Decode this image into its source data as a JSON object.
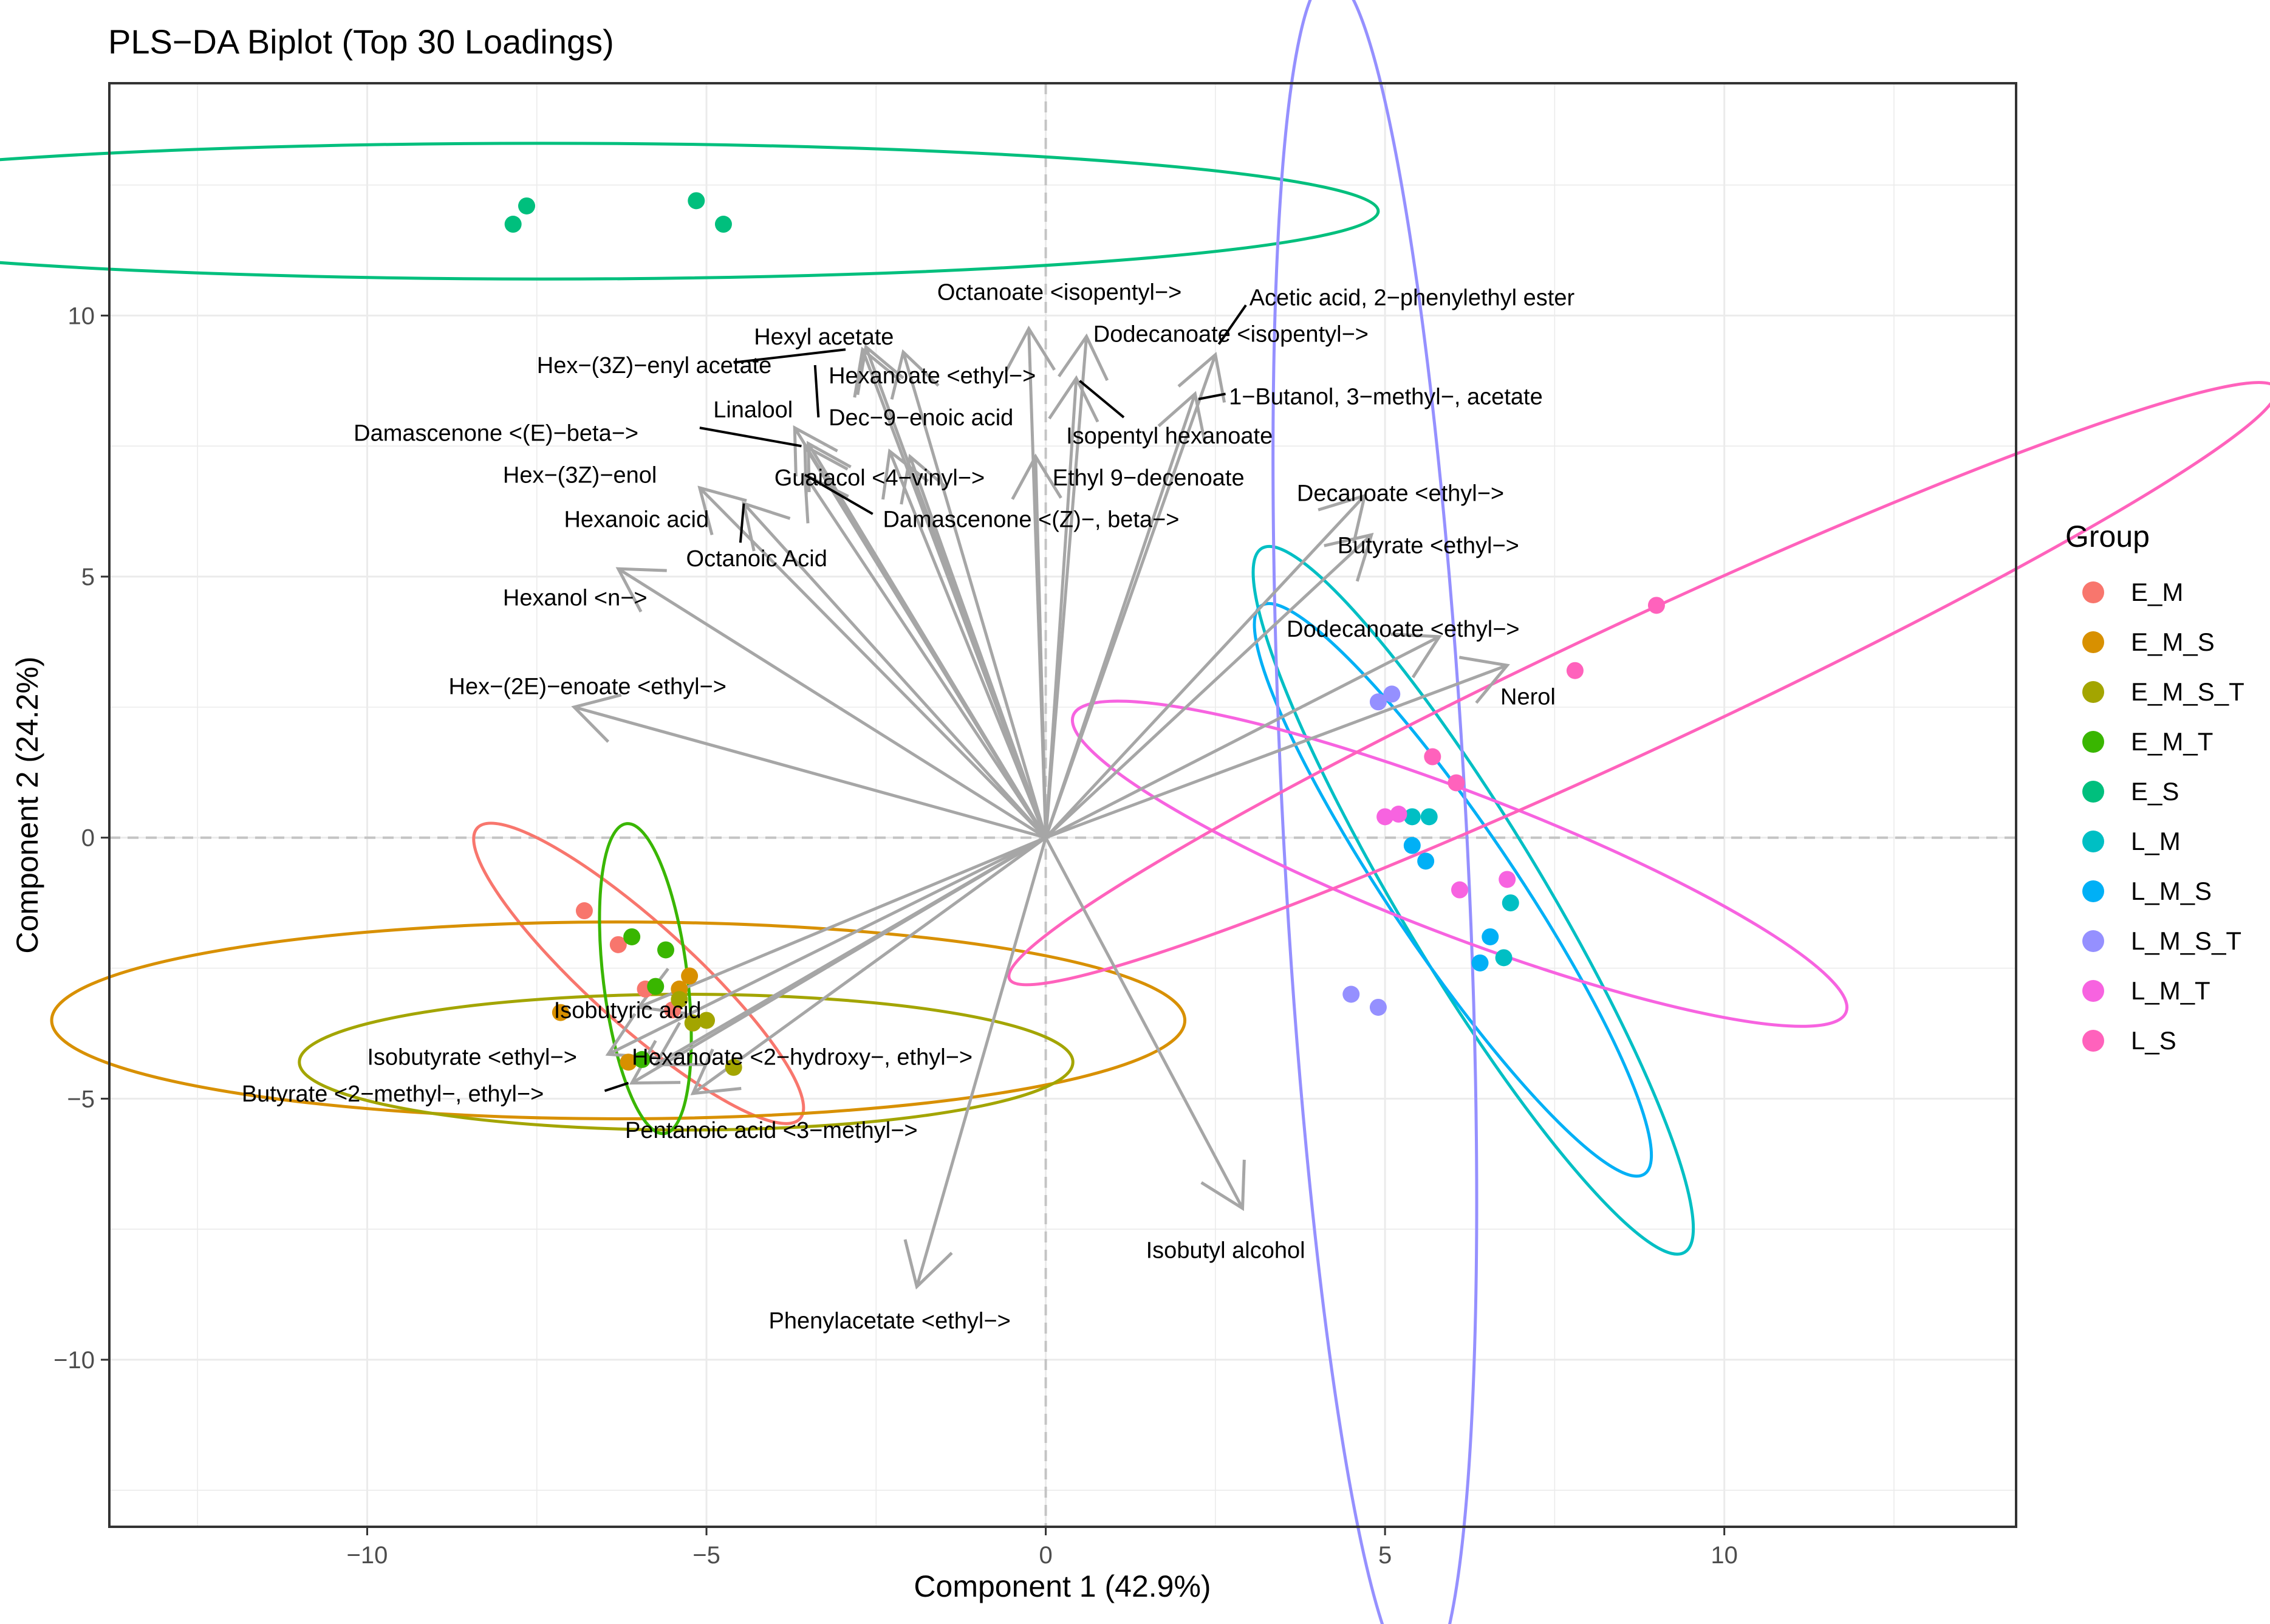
{
  "chart_data": {
    "type": "scatter",
    "title": "PLS−DA Biplot (Top 30 Loadings)",
    "xlabel": "Component 1 (42.9%)",
    "ylabel": "Component 2 (24.2%)",
    "xlim": [
      -13.8,
      14.3
    ],
    "ylim": [
      -13.2,
      14.45
    ],
    "x_ticks": [
      -10,
      -5,
      0,
      5,
      10
    ],
    "x_tick_labels": [
      "−10",
      "−5",
      "0",
      "5",
      "10"
    ],
    "y_ticks": [
      -10,
      -5,
      0,
      5,
      10
    ],
    "y_tick_labels": [
      "−10",
      "−5",
      "0",
      "5",
      "10"
    ],
    "grid": true,
    "reference_lines": {
      "x": 0,
      "y": 0
    },
    "legend": {
      "title": "Group",
      "position": "right",
      "entries": [
        {
          "name": "E_M",
          "color": "#F8766D"
        },
        {
          "name": "E_M_S",
          "color": "#D89000"
        },
        {
          "name": "E_M_S_T",
          "color": "#A3A500"
        },
        {
          "name": "E_M_T",
          "color": "#39B600"
        },
        {
          "name": "E_S",
          "color": "#00BF7D"
        },
        {
          "name": "L_M",
          "color": "#00BFC4"
        },
        {
          "name": "L_M_S",
          "color": "#00B0F6"
        },
        {
          "name": "L_M_S_T",
          "color": "#9590FF"
        },
        {
          "name": "L_M_T",
          "color": "#F763E0"
        },
        {
          "name": "L_S",
          "color": "#FF62BC"
        }
      ]
    },
    "series": [
      {
        "name": "E_M",
        "color": "#F8766D",
        "points": [
          [
            -6.8,
            -1.4
          ],
          [
            -6.3,
            -2.05
          ],
          [
            -5.9,
            -2.9
          ],
          [
            -5.5,
            -3.3
          ]
        ]
      },
      {
        "name": "E_M_S",
        "color": "#D89000",
        "points": [
          [
            -7.15,
            -3.35
          ],
          [
            -6.15,
            -4.3
          ],
          [
            -5.4,
            -2.9
          ],
          [
            -5.25,
            -2.65
          ]
        ]
      },
      {
        "name": "E_M_S_T",
        "color": "#A3A500",
        "points": [
          [
            -5.4,
            -3.1
          ],
          [
            -5.2,
            -3.55
          ],
          [
            -5.0,
            -3.5
          ],
          [
            -4.6,
            -4.4
          ]
        ]
      },
      {
        "name": "E_M_T",
        "color": "#39B600",
        "points": [
          [
            -6.1,
            -1.9
          ],
          [
            -5.75,
            -2.85
          ],
          [
            -5.6,
            -2.15
          ],
          [
            -5.95,
            -4.25
          ]
        ]
      },
      {
        "name": "E_S",
        "color": "#00BF7D",
        "points": [
          [
            -7.85,
            11.75
          ],
          [
            -7.65,
            12.1
          ],
          [
            -5.15,
            12.2
          ],
          [
            -4.75,
            11.75
          ]
        ]
      },
      {
        "name": "L_M",
        "color": "#00BFC4",
        "points": [
          [
            5.4,
            0.4
          ],
          [
            5.65,
            0.4
          ],
          [
            6.75,
            -2.3
          ],
          [
            6.85,
            -1.25
          ]
        ]
      },
      {
        "name": "L_M_S",
        "color": "#00B0F6",
        "points": [
          [
            5.4,
            -0.15
          ],
          [
            5.6,
            -0.45
          ],
          [
            6.4,
            -2.4
          ],
          [
            6.55,
            -1.9
          ]
        ]
      },
      {
        "name": "L_M_S_T",
        "color": "#9590FF",
        "points": [
          [
            4.9,
            2.6
          ],
          [
            5.1,
            2.75
          ],
          [
            4.5,
            -3.0
          ],
          [
            4.9,
            -3.25
          ]
        ]
      },
      {
        "name": "L_M_T",
        "color": "#F763E0",
        "points": [
          [
            5.0,
            0.4
          ],
          [
            5.2,
            0.45
          ],
          [
            6.1,
            -1.0
          ],
          [
            6.8,
            -0.8
          ]
        ]
      },
      {
        "name": "L_S",
        "color": "#FF62BC",
        "points": [
          [
            5.7,
            1.55
          ],
          [
            6.05,
            1.05
          ],
          [
            7.8,
            3.2
          ],
          [
            9.0,
            4.45
          ]
        ]
      }
    ],
    "ellipses": [
      {
        "group": "E_M",
        "cx": -6.0,
        "cy": -2.6,
        "rx": 3.2,
        "ry": 0.75,
        "angle_deg": -42
      },
      {
        "group": "E_M_S",
        "cx": -6.3,
        "cy": -3.5,
        "rx": 8.35,
        "ry": 1.45,
        "angle_deg": 0
      },
      {
        "group": "E_M_S_T",
        "cx": -5.3,
        "cy": -4.3,
        "rx": 5.7,
        "ry": 1.0,
        "angle_deg": 0
      },
      {
        "group": "E_M_T",
        "cx": -5.9,
        "cy": -2.7,
        "rx": 2.3,
        "ry": 0.62,
        "angle_deg": -83
      },
      {
        "group": "E_S",
        "cx": -7.4,
        "cy": 12.0,
        "rx": 12.3,
        "ry": 1.0,
        "angle_deg": 0
      },
      {
        "group": "L_M",
        "cx": 6.3,
        "cy": -1.2,
        "rx": 6.05,
        "ry": 1.05,
        "angle_deg": -59
      },
      {
        "group": "L_M_S",
        "cx": 6.0,
        "cy": -1.0,
        "rx": 5.05,
        "ry": 0.92,
        "angle_deg": -56
      },
      {
        "group": "L_M_S_T",
        "cx": 4.85,
        "cy": 0.15,
        "rx": 12.6,
        "ry": 1.35,
        "angle_deg": -87
      },
      {
        "group": "L_M_T",
        "cx": 6.1,
        "cy": -0.5,
        "rx": 6.1,
        "ry": 1.05,
        "angle_deg": -21
      },
      {
        "group": "L_S",
        "cx": 8.8,
        "cy": 2.95,
        "rx": 10.3,
        "ry": 0.95,
        "angle_deg": 25
      }
    ],
    "loadings": [
      {
        "label": "Octanoate <isopentyl−>",
        "x": -0.25,
        "y": 9.75,
        "lx": -1.6,
        "ly": 10.45,
        "anchor": "start"
      },
      {
        "label": "Acetic acid, 2−phenylethyl ester",
        "x": 2.5,
        "y": 9.25,
        "lx": 3.0,
        "ly": 10.35,
        "anchor": "start",
        "leader": [
          2.55,
          9.45,
          2.95,
          10.2
        ]
      },
      {
        "label": "Hexyl acetate",
        "x": -2.65,
        "y": 9.4,
        "lx": -4.3,
        "ly": 9.6,
        "anchor": "start"
      },
      {
        "label": "Hex−(3Z)−enyl acetate",
        "x": -2.7,
        "y": 9.35,
        "lx": -7.5,
        "ly": 9.05,
        "anchor": "start",
        "leader": [
          -4.6,
          9.1,
          -2.95,
          9.35
        ]
      },
      {
        "label": "Hexanoate <ethyl−>",
        "x": -2.1,
        "y": 9.3,
        "lx": -3.2,
        "ly": 8.85,
        "anchor": "start",
        "leader": [
          -3.4,
          9.05,
          -3.35,
          8.05
        ]
      },
      {
        "label": "Dodecanoate <isopentyl−>",
        "x": 0.6,
        "y": 9.6,
        "lx": 0.7,
        "ly": 9.65,
        "anchor": "start"
      },
      {
        "label": "Linalool",
        "x": -3.7,
        "y": 7.85,
        "lx": -4.9,
        "ly": 8.2,
        "anchor": "start"
      },
      {
        "label": "1−Butanol, 3−methyl−, acetate",
        "x": 2.2,
        "y": 8.5,
        "lx": 2.7,
        "ly": 8.45,
        "anchor": "start",
        "leader": [
          2.25,
          8.4,
          2.65,
          8.5
        ]
      },
      {
        "label": "Dec−9−enoic acid",
        "x": -2.0,
        "y": 7.3,
        "lx": -3.2,
        "ly": 8.05,
        "anchor": "start"
      },
      {
        "label": "Damascenone <(E)−beta−>",
        "x": -3.5,
        "y": 7.55,
        "lx": -10.2,
        "ly": 7.75,
        "anchor": "start",
        "leader": [
          -5.1,
          7.85,
          -3.6,
          7.5
        ]
      },
      {
        "label": "Isopentyl hexanoate",
        "x": 0.45,
        "y": 8.8,
        "lx": 0.3,
        "ly": 7.7,
        "anchor": "start",
        "leader": [
          0.5,
          8.75,
          1.15,
          8.05
        ]
      },
      {
        "label": "Hex−(3Z)−enol",
        "x": -3.55,
        "y": 7.5,
        "lx": -8.0,
        "ly": 6.95,
        "anchor": "start"
      },
      {
        "label": "Guaiacol <4−vinyl−>",
        "x": -2.3,
        "y": 7.4,
        "lx": -4.0,
        "ly": 6.9,
        "anchor": "start"
      },
      {
        "label": "Ethyl 9−decenoate",
        "x": -0.15,
        "y": 7.3,
        "lx": 0.1,
        "ly": 6.9,
        "anchor": "start"
      },
      {
        "label": "Damascenone <(Z)−, beta−>",
        "x": -3.55,
        "y": 6.95,
        "lx": -2.4,
        "ly": 6.1,
        "anchor": "start",
        "leader": [
          -2.55,
          6.2,
          -3.55,
          6.95
        ]
      },
      {
        "label": "Decanoate <ethyl−>",
        "x": 4.7,
        "y": 6.55,
        "lx": 3.7,
        "ly": 6.6,
        "anchor": "start"
      },
      {
        "label": "Hexanoic acid",
        "x": -5.1,
        "y": 6.7,
        "lx": -7.1,
        "ly": 6.1,
        "anchor": "start"
      },
      {
        "label": "Butyrate <ethyl−>",
        "x": 4.8,
        "y": 5.8,
        "lx": 4.3,
        "ly": 5.6,
        "anchor": "start"
      },
      {
        "label": "Octanoic Acid",
        "x": -4.45,
        "y": 6.4,
        "lx": -5.3,
        "ly": 5.35,
        "anchor": "start",
        "leader": [
          -4.5,
          5.65,
          -4.45,
          6.4
        ]
      },
      {
        "label": "Hexanol <n−>",
        "x": -6.3,
        "y": 5.15,
        "lx": -8.0,
        "ly": 4.6,
        "anchor": "start"
      },
      {
        "label": "Dodecanoate <ethyl−>",
        "x": 5.8,
        "y": 3.85,
        "lx": 3.55,
        "ly": 4.0,
        "anchor": "start"
      },
      {
        "label": "Nerol",
        "x": 6.8,
        "y": 3.3,
        "lx": 6.7,
        "ly": 2.7,
        "anchor": "start"
      },
      {
        "label": "Hex−(2E)−enoate <ethyl−>",
        "x": -6.95,
        "y": 2.5,
        "lx": -8.8,
        "ly": 2.9,
        "anchor": "start"
      },
      {
        "label": "Isobutyric acid",
        "x": -6.0,
        "y": -3.25,
        "lx": -7.25,
        "ly": -3.3,
        "anchor": "start"
      },
      {
        "label": "Isobutyrate <ethyl−>",
        "x": -6.45,
        "y": -4.15,
        "lx": -10.0,
        "ly": -4.2,
        "anchor": "start"
      },
      {
        "label": "Hexanoate <2−hydroxy−, ethyl−>",
        "x": -5.75,
        "y": -4.35,
        "lx": -6.1,
        "ly": -4.2,
        "anchor": "start"
      },
      {
        "label": "Butyrate <2−methyl−, ethyl−>",
        "x": -6.1,
        "y": -4.7,
        "lx": -11.85,
        "ly": -4.9,
        "anchor": "start",
        "leader": [
          -6.5,
          -4.85,
          -6.15,
          -4.7
        ]
      },
      {
        "label": "Pentanoic acid <3−methyl−>",
        "x": -5.2,
        "y": -4.9,
        "lx": -6.2,
        "ly": -5.6,
        "anchor": "start"
      },
      {
        "label": "Isobutyl alcohol",
        "x": 2.9,
        "y": -7.1,
        "lx": 2.65,
        "ly": -7.9,
        "anchor": "middle"
      },
      {
        "label": "Phenylacetate <ethyl−>",
        "x": -1.9,
        "y": -8.6,
        "lx": -2.3,
        "ly": -9.25,
        "anchor": "middle"
      }
    ]
  }
}
